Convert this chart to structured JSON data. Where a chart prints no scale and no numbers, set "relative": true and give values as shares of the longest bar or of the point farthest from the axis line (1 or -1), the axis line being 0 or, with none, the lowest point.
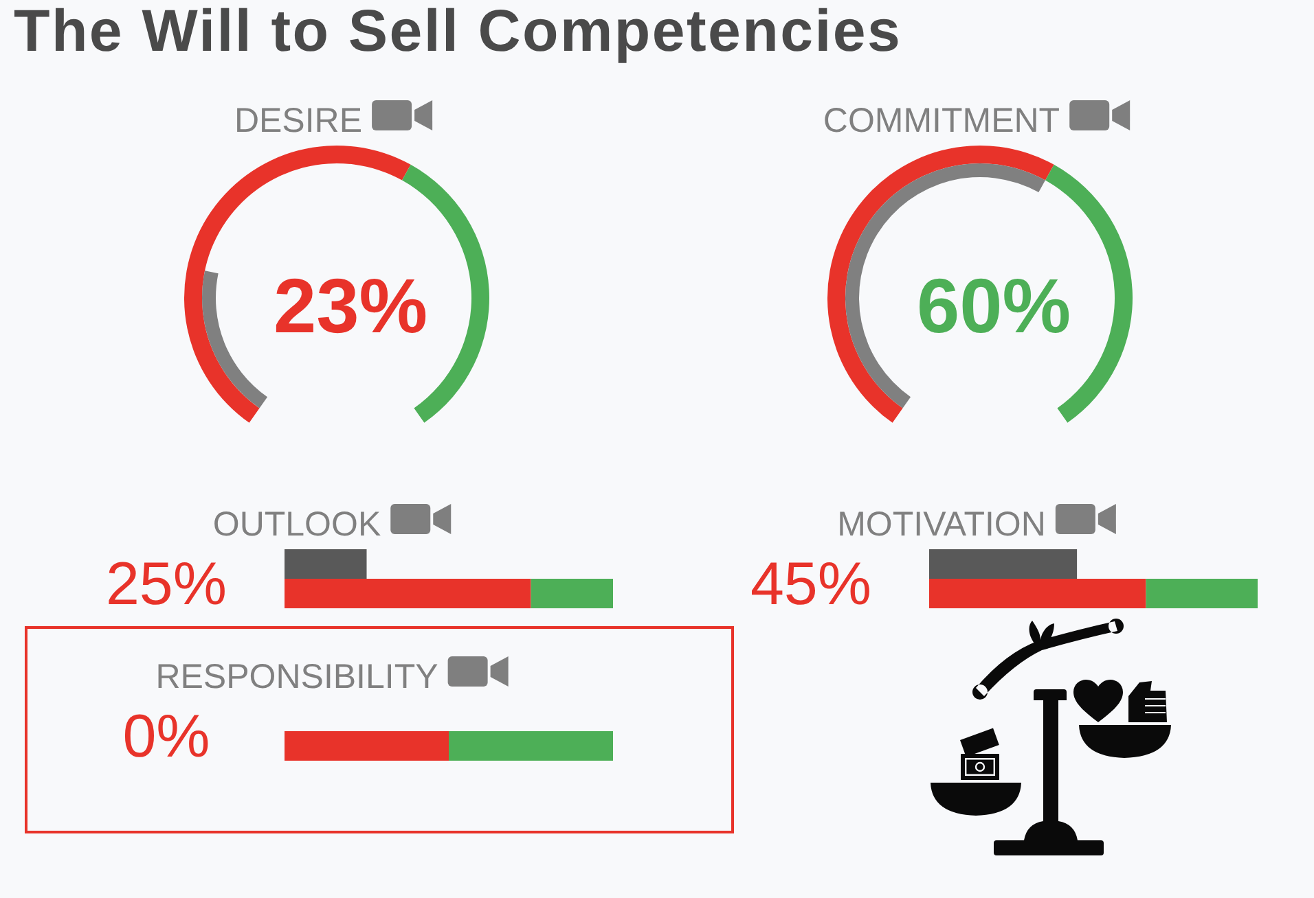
{
  "chart_data": [
    {
      "type": "other",
      "title": "The Will to Sell Competencies"
    },
    {
      "type": "donut",
      "title": "DESIRE",
      "categories": [
        null,
        null
      ],
      "values": [
        60,
        40
      ],
      "colors": [
        "#e8332a",
        "#4daf57"
      ]
    },
    {
      "type": "other",
      "values": [
        23
      ],
      "value_labels": [
        "23%"
      ],
      "color": "#808080"
    },
    {
      "type": "donut",
      "title": "COMMITMENT",
      "categories": [
        null,
        null
      ],
      "values": [
        60,
        40
      ],
      "colors": [
        "#e8332a",
        "#4daf57"
      ]
    },
    {
      "type": "other",
      "values": [
        60
      ],
      "value_labels": [
        "60%"
      ],
      "color": "#808080"
    },
    {
      "type": "bar",
      "orientation": "horizontal",
      "stacked": true,
      "title": "OUTLOOK",
      "categories": [
        null,
        null
      ],
      "xlim": [
        0,
        100
      ],
      "series": [
        {
          "color": "#595959",
          "values": [
            25,
            null
          ],
          "value_labels": [
            "25%",
            null
          ]
        },
        {
          "color": "#e8332a",
          "values": [
            null,
            75
          ]
        },
        {
          "color": "#4daf57",
          "values": [
            null,
            25
          ]
        }
      ]
    },
    {
      "type": "bar",
      "orientation": "horizontal",
      "stacked": true,
      "title": "MOTIVATION",
      "categories": [
        null,
        null
      ],
      "xlim": [
        0,
        100
      ],
      "series": [
        {
          "color": "#595959",
          "values": [
            45,
            null
          ],
          "value_labels": [
            "45%",
            null
          ]
        },
        {
          "color": "#e8332a",
          "values": [
            null,
            66
          ]
        },
        {
          "color": "#4daf57",
          "values": [
            null,
            34
          ]
        }
      ]
    },
    {
      "type": "bar",
      "orientation": "horizontal",
      "stacked": true,
      "relative": true,
      "title": "RESPONSIBILITY",
      "categories": [
        null
      ],
      "annotations": [
        "0%"
      ],
      "series": [
        {
          "color": "#e8332a",
          "values": [
            0.5
          ]
        },
        {
          "color": "#4daf57",
          "values": [
            0.5
          ]
        }
      ]
    }
  ]
}
